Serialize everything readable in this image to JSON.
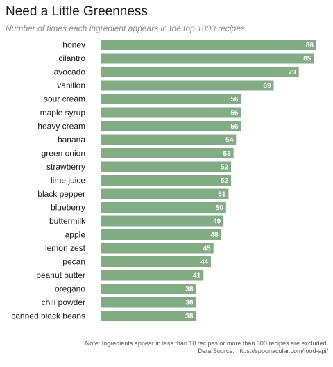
{
  "title": "Need a Little Greenness",
  "subtitle": "Number of times each ingredient appears in the top 1000 recipes.",
  "note": {
    "line1": "Note: Ingredients appear in less than 10 recipes or more than 300 recipes are excluded.",
    "line2": "Data Source: https://spoonacular.com/food-api/"
  },
  "chart_data": {
    "type": "bar",
    "orientation": "horizontal",
    "title": "Need a Little Greenness",
    "subtitle": "Number of times each ingredient appears in the top 1000 recipes.",
    "xlabel": "",
    "ylabel": "",
    "grid": false,
    "bar_color": "#82ad84",
    "xlim": [
      0,
      86
    ],
    "categories": [
      "honey",
      "cilantro",
      "avocado",
      "vanillon",
      "sour cream",
      "maple syrup",
      "heavy cream",
      "banana",
      "green onion",
      "strawberry",
      "lime juice",
      "black pepper",
      "blueberry",
      "buttermilk",
      "apple",
      "lemon zest",
      "pecan",
      "peanut butter",
      "oregano",
      "chili powder",
      "canned black beans"
    ],
    "values": [
      86,
      85,
      79,
      69,
      56,
      56,
      56,
      54,
      53,
      52,
      52,
      51,
      50,
      49,
      48,
      45,
      44,
      41,
      38,
      38,
      38
    ]
  }
}
